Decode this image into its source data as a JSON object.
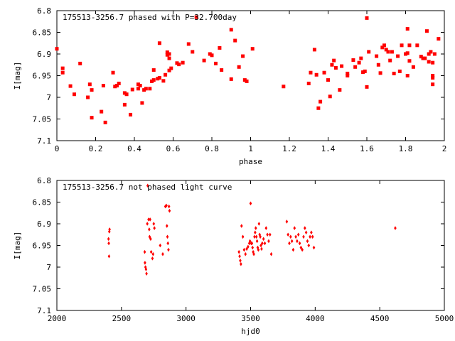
{
  "chart_data": [
    {
      "type": "scatter",
      "title": "175513-3256.7 phased with P=32.700day",
      "xlabel": "phase",
      "ylabel": "I[mag]",
      "xlim": [
        0,
        2
      ],
      "ylim": [
        6.8,
        7.1
      ],
      "y_inverted": true,
      "xticks": [
        "0",
        "0.2",
        "0.4",
        "0.6",
        "0.8",
        "1",
        "1.2",
        "1.4",
        "1.6",
        "1.8",
        "2"
      ],
      "xtick_values": [
        0,
        0.2,
        0.4,
        0.6,
        0.8,
        1,
        1.2,
        1.4,
        1.6,
        1.8,
        2
      ],
      "yticks": [
        "6.8",
        "6.85",
        "6.9",
        "6.95",
        "7",
        "7.05",
        "7.1"
      ],
      "ytick_values": [
        6.8,
        6.85,
        6.9,
        6.95,
        7,
        7.05,
        7.1
      ],
      "marker_color": "#ff0000",
      "marker": "square",
      "points": [
        [
          0.0,
          6.888
        ],
        [
          0.03,
          6.933
        ],
        [
          0.03,
          6.943
        ],
        [
          0.07,
          6.974
        ],
        [
          0.09,
          6.993
        ],
        [
          0.12,
          6.922
        ],
        [
          0.16,
          7.0
        ],
        [
          0.17,
          6.97
        ],
        [
          0.18,
          6.983
        ],
        [
          0.18,
          7.047
        ],
        [
          0.23,
          7.033
        ],
        [
          0.24,
          6.973
        ],
        [
          0.25,
          7.058
        ],
        [
          0.29,
          6.943
        ],
        [
          0.3,
          6.975
        ],
        [
          0.31,
          6.973
        ],
        [
          0.32,
          6.968
        ],
        [
          0.35,
          6.99
        ],
        [
          0.35,
          7.017
        ],
        [
          0.36,
          6.993
        ],
        [
          0.38,
          7.04
        ],
        [
          0.39,
          6.982
        ],
        [
          0.42,
          6.98
        ],
        [
          0.42,
          6.97
        ],
        [
          0.43,
          6.973
        ],
        [
          0.44,
          7.013
        ],
        [
          0.45,
          6.983
        ],
        [
          0.46,
          6.98
        ],
        [
          0.48,
          6.98
        ],
        [
          0.49,
          6.963
        ],
        [
          0.5,
          6.937
        ],
        [
          0.5,
          6.96
        ],
        [
          0.52,
          6.957
        ],
        [
          0.53,
          6.875
        ],
        [
          0.53,
          6.955
        ],
        [
          0.55,
          6.962
        ],
        [
          0.56,
          6.948
        ],
        [
          0.57,
          6.896
        ],
        [
          0.57,
          6.902
        ],
        [
          0.58,
          6.9
        ],
        [
          0.58,
          6.91
        ],
        [
          0.58,
          6.938
        ],
        [
          0.59,
          6.933
        ],
        [
          0.62,
          6.921
        ],
        [
          0.63,
          6.924
        ],
        [
          0.65,
          6.92
        ],
        [
          0.68,
          6.877
        ],
        [
          0.7,
          6.895
        ],
        [
          0.72,
          6.815
        ],
        [
          0.76,
          6.915
        ],
        [
          0.79,
          6.9
        ],
        [
          0.8,
          6.903
        ],
        [
          0.82,
          6.922
        ],
        [
          0.84,
          6.886
        ],
        [
          0.85,
          6.937
        ],
        [
          0.9,
          6.844
        ],
        [
          0.9,
          6.958
        ],
        [
          0.92,
          6.869
        ],
        [
          0.94,
          6.93
        ],
        [
          0.96,
          6.905
        ],
        [
          0.97,
          6.96
        ],
        [
          0.98,
          6.963
        ],
        [
          1.01,
          6.888
        ],
        [
          1.17,
          6.975
        ],
        [
          1.3,
          6.968
        ],
        [
          1.31,
          6.943
        ],
        [
          1.33,
          6.89
        ],
        [
          1.34,
          6.948
        ],
        [
          1.35,
          7.025
        ],
        [
          1.36,
          7.01
        ],
        [
          1.38,
          6.943
        ],
        [
          1.4,
          6.96
        ],
        [
          1.41,
          6.998
        ],
        [
          1.42,
          6.925
        ],
        [
          1.43,
          6.915
        ],
        [
          1.44,
          6.932
        ],
        [
          1.46,
          6.983
        ],
        [
          1.47,
          6.928
        ],
        [
          1.5,
          6.95
        ],
        [
          1.5,
          6.945
        ],
        [
          1.53,
          6.914
        ],
        [
          1.54,
          6.93
        ],
        [
          1.56,
          6.92
        ],
        [
          1.57,
          6.91
        ],
        [
          1.58,
          6.942
        ],
        [
          1.59,
          6.94
        ],
        [
          1.6,
          6.817
        ],
        [
          1.6,
          6.976
        ],
        [
          1.61,
          6.895
        ],
        [
          1.65,
          6.905
        ],
        [
          1.66,
          6.925
        ],
        [
          1.67,
          6.944
        ],
        [
          1.68,
          6.885
        ],
        [
          1.69,
          6.88
        ],
        [
          1.7,
          6.89
        ],
        [
          1.71,
          6.895
        ],
        [
          1.72,
          6.915
        ],
        [
          1.73,
          6.895
        ],
        [
          1.74,
          6.945
        ],
        [
          1.76,
          6.905
        ],
        [
          1.77,
          6.94
        ],
        [
          1.78,
          6.88
        ],
        [
          1.8,
          6.9
        ],
        [
          1.81,
          6.842
        ],
        [
          1.81,
          6.898
        ],
        [
          1.81,
          6.95
        ],
        [
          1.82,
          6.88
        ],
        [
          1.82,
          6.916
        ],
        [
          1.84,
          6.93
        ],
        [
          1.86,
          6.88
        ],
        [
          1.88,
          6.906
        ],
        [
          1.89,
          6.91
        ],
        [
          1.9,
          6.91
        ],
        [
          1.91,
          6.847
        ],
        [
          1.92,
          6.9
        ],
        [
          1.92,
          6.918
        ],
        [
          1.93,
          6.895
        ],
        [
          1.94,
          6.92
        ],
        [
          1.94,
          6.95
        ],
        [
          1.94,
          6.955
        ],
        [
          1.94,
          6.97
        ],
        [
          1.95,
          6.9
        ],
        [
          1.97,
          6.865
        ]
      ]
    },
    {
      "type": "scatter",
      "title": "175513-3256.7 not phased light curve",
      "xlabel": "hjd0",
      "ylabel": "I[mag]",
      "xlim": [
        2000,
        5000
      ],
      "ylim": [
        6.8,
        7.1
      ],
      "y_inverted": true,
      "xticks": [
        "2000",
        "2500",
        "3000",
        "3500",
        "4000",
        "4500",
        "5000"
      ],
      "xtick_values": [
        2000,
        2500,
        3000,
        3500,
        4000,
        4500,
        5000
      ],
      "yticks": [
        "6.8",
        "6.85",
        "6.9",
        "6.95",
        "7",
        "7.05",
        "7.1"
      ],
      "ytick_values": [
        6.8,
        6.85,
        6.9,
        6.95,
        7,
        7.05,
        7.1
      ],
      "marker_color": "#ff0000",
      "marker": "diamond",
      "points": [
        [
          2400,
          6.935
        ],
        [
          2402,
          6.945
        ],
        [
          2404,
          6.975
        ],
        [
          2406,
          6.918
        ],
        [
          2408,
          6.913
        ],
        [
          2680,
          6.965
        ],
        [
          2682,
          6.99
        ],
        [
          2686,
          7.0
        ],
        [
          2690,
          7.005
        ],
        [
          2694,
          7.015
        ],
        [
          2700,
          6.9
        ],
        [
          2703,
          6.812
        ],
        [
          2710,
          6.89
        ],
        [
          2715,
          6.913
        ],
        [
          2718,
          6.93
        ],
        [
          2722,
          6.89
        ],
        [
          2726,
          6.935
        ],
        [
          2730,
          6.965
        ],
        [
          2740,
          6.98
        ],
        [
          2745,
          6.97
        ],
        [
          2750,
          6.9
        ],
        [
          2755,
          6.91
        ],
        [
          2800,
          6.95
        ],
        [
          2820,
          6.97
        ],
        [
          2840,
          6.86
        ],
        [
          2848,
          6.858
        ],
        [
          2852,
          6.905
        ],
        [
          2856,
          6.93
        ],
        [
          2860,
          6.945
        ],
        [
          2864,
          6.96
        ],
        [
          2868,
          6.86
        ],
        [
          2872,
          6.87
        ],
        [
          3410,
          6.965
        ],
        [
          3415,
          6.975
        ],
        [
          3420,
          6.985
        ],
        [
          3425,
          6.993
        ],
        [
          3430,
          6.905
        ],
        [
          3440,
          6.93
        ],
        [
          3450,
          6.96
        ],
        [
          3460,
          6.97
        ],
        [
          3470,
          6.958
        ],
        [
          3480,
          6.953
        ],
        [
          3490,
          6.945
        ],
        [
          3495,
          6.94
        ],
        [
          3500,
          6.853
        ],
        [
          3505,
          6.945
        ],
        [
          3510,
          6.945
        ],
        [
          3515,
          6.955
        ],
        [
          3520,
          6.965
        ],
        [
          3525,
          6.97
        ],
        [
          3530,
          6.93
        ],
        [
          3535,
          6.92
        ],
        [
          3540,
          6.91
        ],
        [
          3545,
          6.93
        ],
        [
          3550,
          6.94
        ],
        [
          3555,
          6.955
        ],
        [
          3560,
          6.96
        ],
        [
          3565,
          6.9
        ],
        [
          3570,
          6.925
        ],
        [
          3575,
          6.93
        ],
        [
          3580,
          6.95
        ],
        [
          3585,
          6.958
        ],
        [
          3590,
          6.945
        ],
        [
          3600,
          6.935
        ],
        [
          3610,
          6.945
        ],
        [
          3620,
          6.91
        ],
        [
          3630,
          6.925
        ],
        [
          3640,
          6.94
        ],
        [
          3650,
          6.925
        ],
        [
          3660,
          6.97
        ],
        [
          3780,
          6.895
        ],
        [
          3790,
          6.925
        ],
        [
          3800,
          6.945
        ],
        [
          3810,
          6.93
        ],
        [
          3820,
          6.94
        ],
        [
          3830,
          6.96
        ],
        [
          3840,
          6.91
        ],
        [
          3850,
          6.93
        ],
        [
          3860,
          6.94
        ],
        [
          3870,
          6.925
        ],
        [
          3880,
          6.945
        ],
        [
          3890,
          6.955
        ],
        [
          3900,
          6.96
        ],
        [
          3910,
          6.93
        ],
        [
          3920,
          6.91
        ],
        [
          3930,
          6.92
        ],
        [
          3940,
          6.94
        ],
        [
          3950,
          6.95
        ],
        [
          3960,
          6.93
        ],
        [
          3970,
          6.92
        ],
        [
          3980,
          6.93
        ],
        [
          3990,
          6.955
        ],
        [
          4620,
          6.91
        ]
      ]
    }
  ]
}
